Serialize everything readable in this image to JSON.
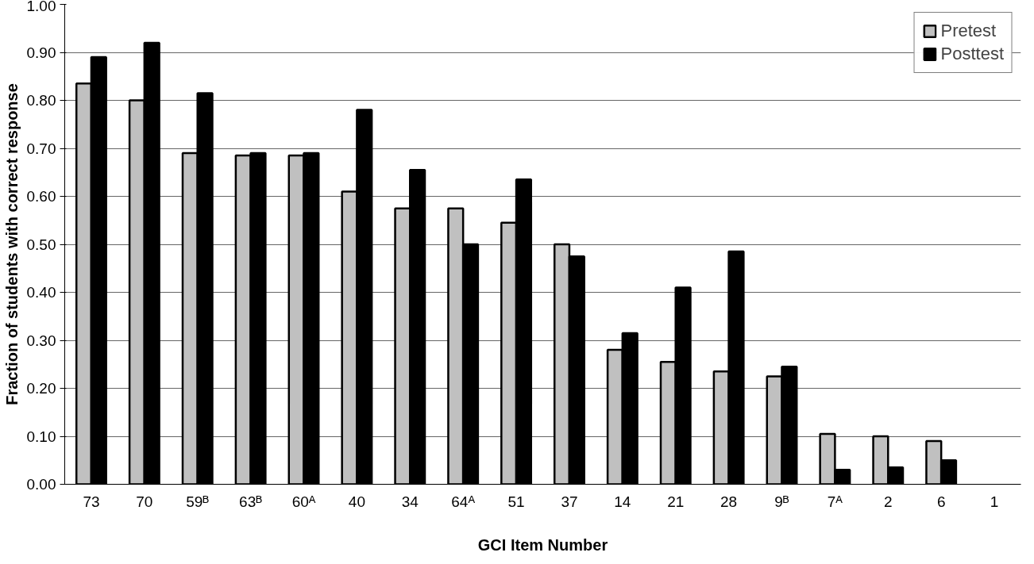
{
  "chart_data": {
    "type": "bar",
    "xlabel": "GCI Item Number",
    "ylabel": "Fraction of students with correct response",
    "categories": [
      "73",
      "70",
      "59ᴮ",
      "63ᴮ",
      "60ᴬ",
      "40",
      "34",
      "64ᴬ",
      "51",
      "37",
      "14",
      "21",
      "28",
      "9ᴮ",
      "7ᴬ",
      "2",
      "6",
      "1"
    ],
    "series": [
      {
        "name": "Pretest",
        "color": "#c0c0c0",
        "values": [
          0.835,
          0.8,
          0.69,
          0.685,
          0.685,
          0.61,
          0.575,
          0.575,
          0.545,
          0.5,
          0.28,
          0.255,
          0.235,
          0.225,
          0.105,
          0.1,
          0.09,
          null
        ]
      },
      {
        "name": "Posttest",
        "color": "#000000",
        "values": [
          0.89,
          0.92,
          0.815,
          0.69,
          0.69,
          0.78,
          0.655,
          0.5,
          0.635,
          0.475,
          0.315,
          0.41,
          0.485,
          0.245,
          0.03,
          0.035,
          0.05,
          null
        ]
      }
    ],
    "ylim": [
      0,
      1
    ],
    "yticks": [
      {
        "value": 0,
        "label": "0.00"
      },
      {
        "value": 0.1,
        "label": "0.10"
      },
      {
        "value": 0.2,
        "label": "0.20"
      },
      {
        "value": 0.3,
        "label": "0.30"
      },
      {
        "value": 0.4,
        "label": "0.40"
      },
      {
        "value": 0.5,
        "label": "0.50"
      },
      {
        "value": 0.6,
        "label": "0.60"
      },
      {
        "value": 0.7,
        "label": "0.70"
      },
      {
        "value": 0.8,
        "label": "0.80"
      },
      {
        "value": 0.9,
        "label": "0.90"
      },
      {
        "value": 1,
        "label": "1.00"
      }
    ],
    "grid": "y",
    "legend": "top right"
  }
}
